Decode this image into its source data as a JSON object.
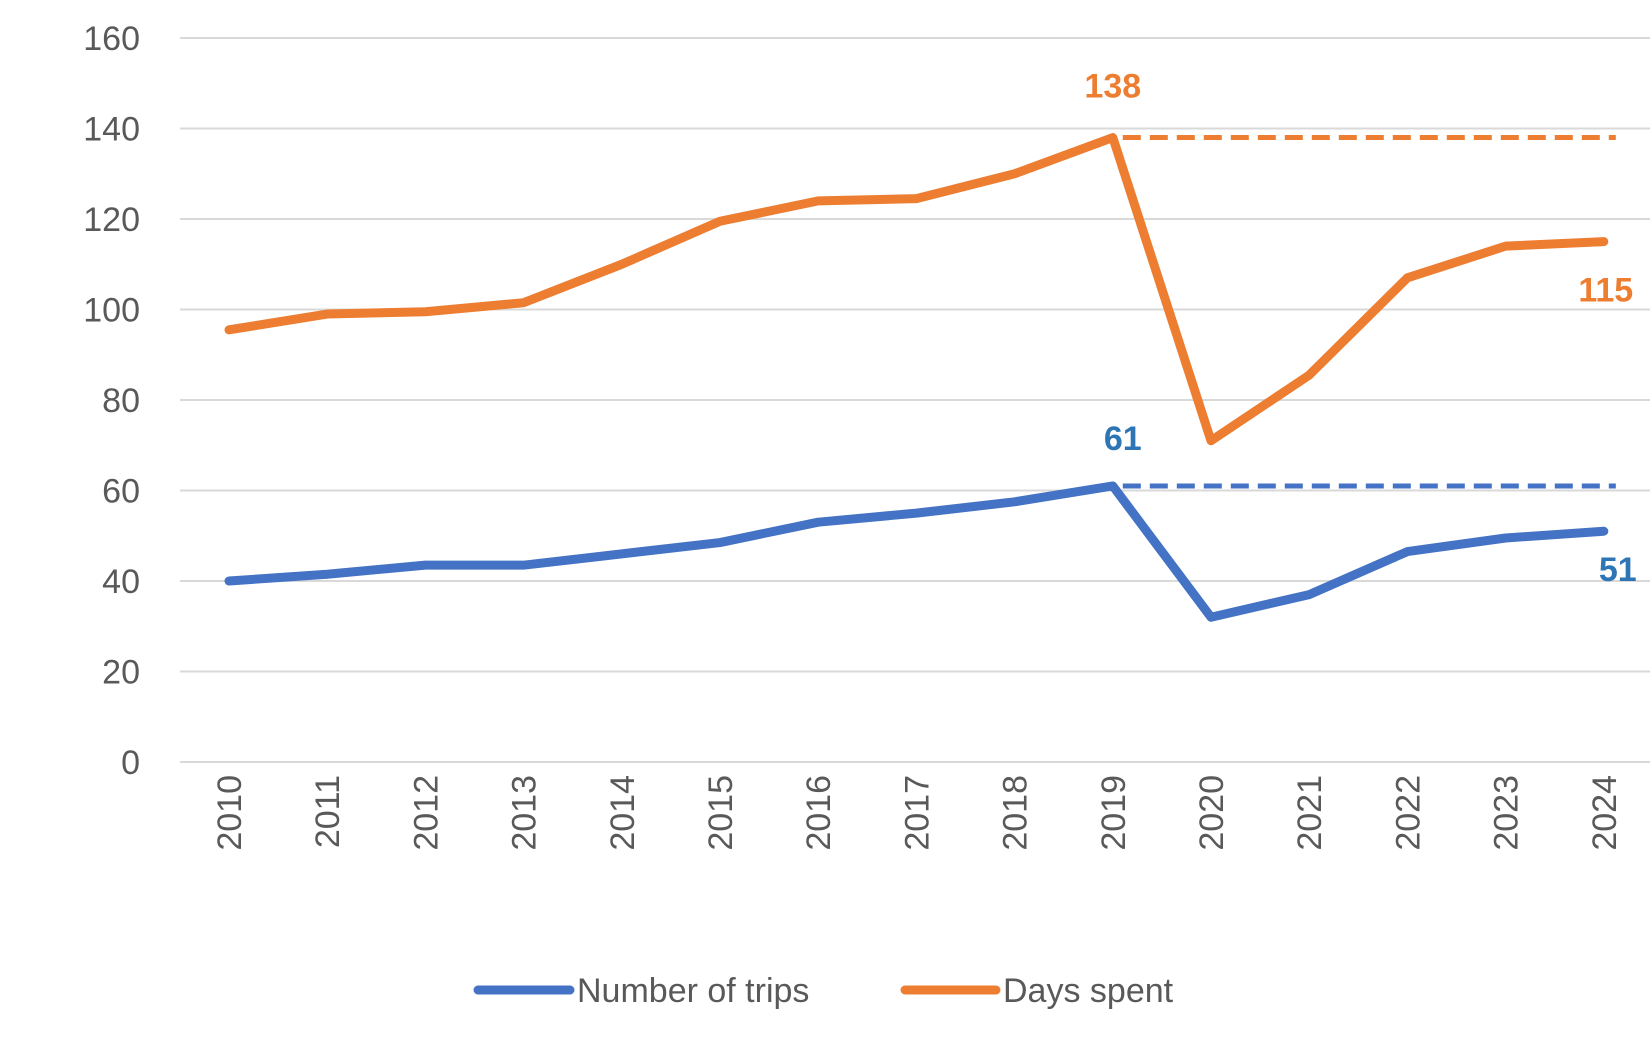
{
  "chart_data": {
    "type": "line",
    "title": "",
    "xlabel": "",
    "ylabel": "",
    "ylim": [
      0,
      160
    ],
    "yticks": [
      0,
      20,
      40,
      60,
      80,
      100,
      120,
      140,
      160
    ],
    "grid": true,
    "legend_position": "bottom",
    "categories": [
      "2010",
      "2011",
      "2012",
      "2013",
      "2014",
      "2015",
      "2016",
      "2017",
      "2018",
      "2019",
      "2020",
      "2021",
      "2022",
      "2023",
      "2024"
    ],
    "series": [
      {
        "name": "Number of trips",
        "color": "#4472C4",
        "values": [
          40,
          41.5,
          43.5,
          43.5,
          46,
          48.5,
          53,
          55,
          57.5,
          61,
          32,
          37,
          46.5,
          49.5,
          51
        ]
      },
      {
        "name": "Days spent",
        "color": "#ED7D31",
        "values": [
          95.5,
          99,
          99.5,
          101.5,
          110,
          119.5,
          124,
          124.5,
          130,
          138,
          71,
          85.5,
          107,
          114,
          115
        ]
      }
    ],
    "reference_lines": [
      {
        "series": "Number of trips",
        "from": "2019",
        "to": "2024",
        "value": 61,
        "style": "dashed",
        "color": "#4472C4"
      },
      {
        "series": "Days spent",
        "from": "2019",
        "to": "2024",
        "value": 138,
        "style": "dashed",
        "color": "#ED7D31"
      }
    ],
    "annotations": [
      {
        "series": "Days spent",
        "category": "2019",
        "text": "138",
        "color": "#ED7D31"
      },
      {
        "series": "Days spent",
        "category": "2024",
        "text": "115",
        "color": "#ED7D31"
      },
      {
        "series": "Number of trips",
        "category": "2019",
        "text": "61",
        "color": "#2E75B6"
      },
      {
        "series": "Number of trips",
        "category": "2024",
        "text": "51",
        "color": "#2E75B6"
      }
    ]
  }
}
